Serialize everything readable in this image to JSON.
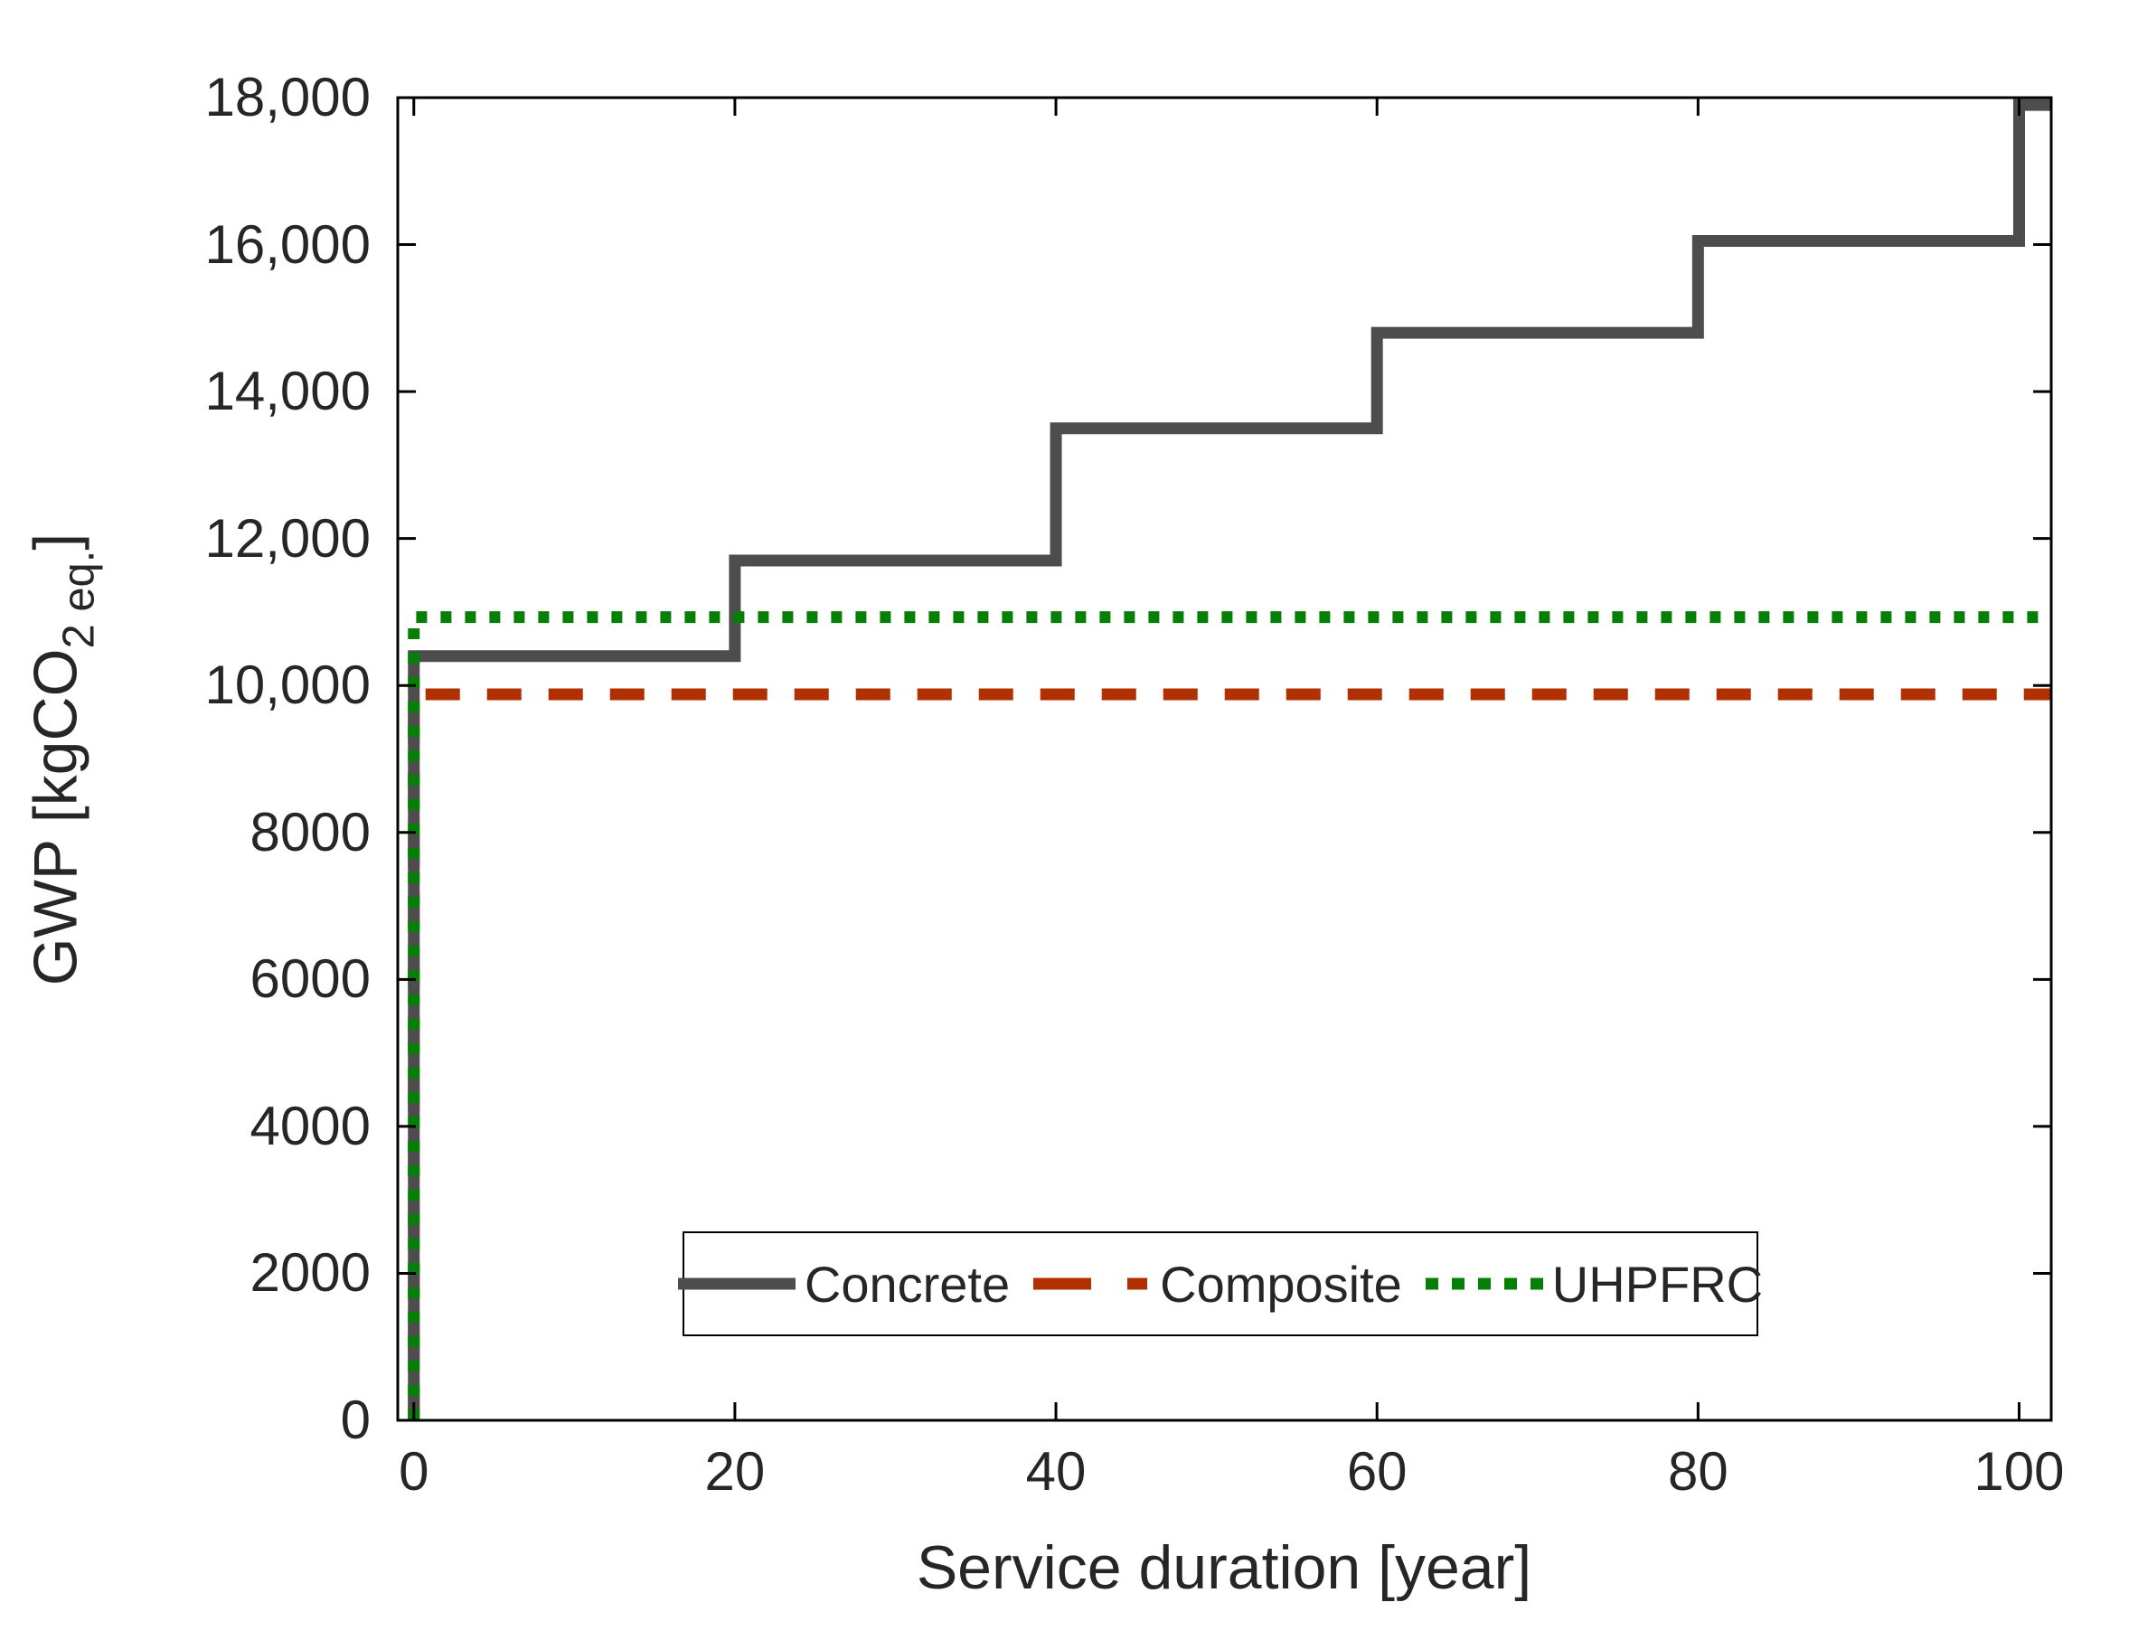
{
  "chart_data": {
    "type": "line",
    "subtype": "step",
    "title": "",
    "xlabel": "Service duration [year]",
    "ylabel_main": "GWP [kgCO",
    "ylabel_sub": "2 eq.",
    "ylabel_close": "]",
    "xlim": [
      -1,
      102
    ],
    "ylim": [
      0,
      18000
    ],
    "grid": false,
    "legend_position": "bottom-center-inside",
    "axis_color": "#000000",
    "text_color": "#262626",
    "x_ticks": [
      {
        "v": 0,
        "label": "0"
      },
      {
        "v": 20,
        "label": "20"
      },
      {
        "v": 40,
        "label": "40"
      },
      {
        "v": 60,
        "label": "60"
      },
      {
        "v": 80,
        "label": "80"
      },
      {
        "v": 100,
        "label": "100"
      }
    ],
    "y_ticks": [
      {
        "v": 0,
        "label": "0"
      },
      {
        "v": 2000,
        "label": "2000"
      },
      {
        "v": 4000,
        "label": "4000"
      },
      {
        "v": 6000,
        "label": "6000"
      },
      {
        "v": 8000,
        "label": "8000"
      },
      {
        "v": 10000,
        "label": "10,000"
      },
      {
        "v": 12000,
        "label": "12,000"
      },
      {
        "v": 14000,
        "label": "14,000"
      },
      {
        "v": 16000,
        "label": "16,000"
      },
      {
        "v": 18000,
        "label": "18,000"
      }
    ],
    "series": [
      {
        "name": "Concrete",
        "color": "#4D4D4D",
        "style": "solid",
        "start": {
          "x": 0,
          "y": 0
        },
        "step_x": [
          0,
          20,
          40,
          60,
          80,
          100
        ],
        "step_values": [
          10400,
          11700,
          13500,
          14800,
          16050,
          17900
        ],
        "end_x": 102
      },
      {
        "name": "Composite",
        "color": "#B03000",
        "style": "dashed",
        "start": {
          "x": 0,
          "y": 0
        },
        "step_x": [
          0
        ],
        "step_values": [
          9880
        ],
        "end_x": 102
      },
      {
        "name": "UHPFRC",
        "color": "#067F06",
        "style": "dotted",
        "start": {
          "x": 0,
          "y": 0
        },
        "step_x": [
          0
        ],
        "step_values": [
          10930
        ],
        "end_x": 102
      }
    ]
  }
}
